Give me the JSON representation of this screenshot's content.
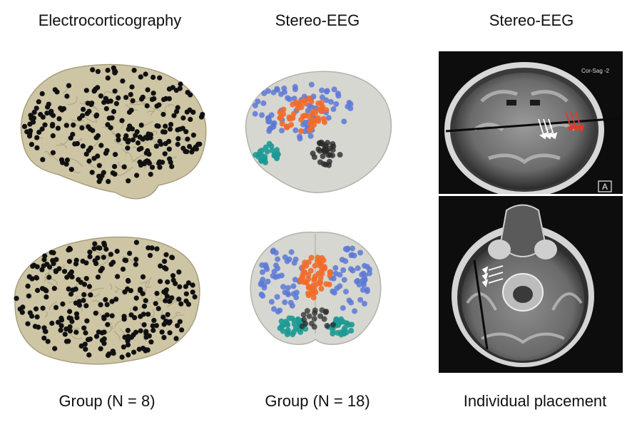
{
  "columns": [
    {
      "title": "Electrocorticography",
      "caption": "Group (N = 8)"
    },
    {
      "title": "Stereo-EEG",
      "caption": "Group (N = 18)"
    },
    {
      "title": "Stereo-EEG",
      "caption": "Individual placement"
    }
  ],
  "mri": {
    "coronal_label": "Cor-Sag -2",
    "orientation_box": "A"
  },
  "colors": {
    "cortex": "#cdc5a4",
    "electrode": "#111111",
    "glass_brain": "#c9c9c2",
    "blue_contacts": "#5c79d6",
    "orange_contacts": "#f26b2a",
    "teal_contacts": "#1e9a95",
    "dark_contacts": "#2b2b2b",
    "arrow_white": "#ffffff",
    "arrow_red": "#e03a2e"
  }
}
